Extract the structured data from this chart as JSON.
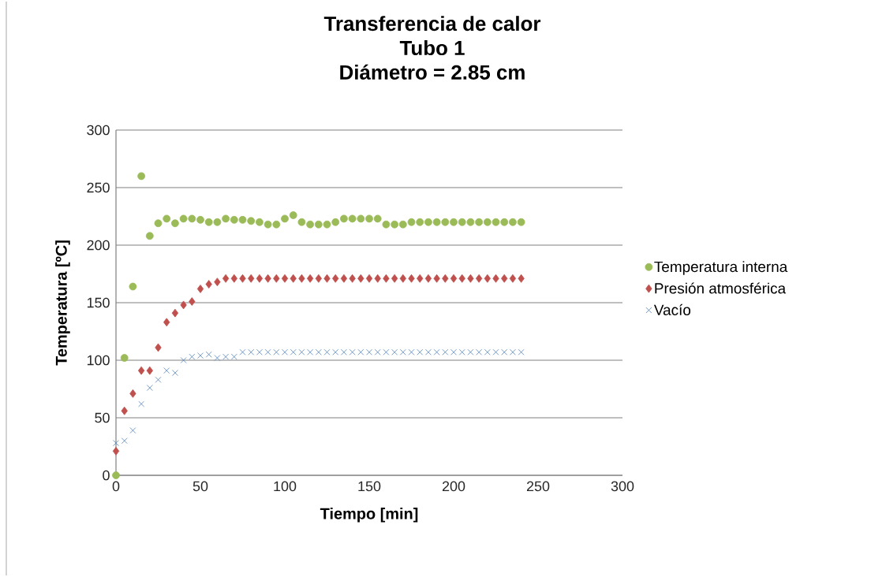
{
  "chart_data": {
    "type": "scatter",
    "title": "Transferencia de calor\nTubo 1\nDiámetro = 2.85 cm",
    "xlabel": "Tiempo [min]",
    "ylabel": "Temperatura [ºC]",
    "x": [
      0,
      5,
      10,
      15,
      20,
      25,
      30,
      35,
      40,
      45,
      50,
      55,
      60,
      65,
      70,
      75,
      80,
      85,
      90,
      95,
      100,
      105,
      110,
      115,
      120,
      125,
      130,
      135,
      140,
      145,
      150,
      155,
      160,
      165,
      170,
      175,
      180,
      185,
      190,
      195,
      200,
      205,
      210,
      215,
      220,
      225,
      230,
      235,
      240
    ],
    "series": [
      {
        "name": "Temperatura interna",
        "color": "#9bbb59",
        "marker": "circle",
        "values": [
          0,
          102,
          164,
          260,
          208,
          219,
          223,
          219,
          223,
          223,
          222,
          220,
          220,
          223,
          222,
          222,
          221,
          220,
          218,
          218,
          223,
          226,
          220,
          218,
          218,
          218,
          220,
          223,
          223,
          223,
          223,
          223,
          218,
          218,
          218,
          220,
          220,
          220,
          220,
          220,
          220,
          220,
          220,
          220,
          220,
          220,
          220,
          220,
          220
        ]
      },
      {
        "name": "Presión atmosférica",
        "color": "#c0504d",
        "marker": "diamond",
        "values": [
          21,
          56,
          71,
          91,
          91,
          111,
          133,
          141,
          148,
          151,
          162,
          166,
          168,
          171,
          171,
          171,
          171,
          171,
          171,
          171,
          171,
          171,
          171,
          171,
          171,
          171,
          171,
          171,
          171,
          171,
          171,
          171,
          171,
          171,
          171,
          171,
          171,
          171,
          171,
          171,
          171,
          171,
          171,
          171,
          171,
          171,
          171,
          171,
          171
        ]
      },
      {
        "name": "Vacío",
        "color": "#4f81bd",
        "marker": "cross",
        "values": [
          28,
          30,
          39,
          62,
          76,
          83,
          91,
          89,
          100,
          103,
          104,
          105,
          102,
          103,
          103,
          107,
          107,
          107,
          107,
          107,
          107,
          107,
          107,
          107,
          107,
          107,
          107,
          107,
          107,
          107,
          107,
          107,
          107,
          107,
          107,
          107,
          107,
          107,
          107,
          107,
          107,
          107,
          107,
          107,
          107,
          107,
          107,
          107,
          107
        ]
      }
    ],
    "xlim": [
      0,
      300
    ],
    "xticks": [
      0,
      50,
      100,
      150,
      200,
      250,
      300
    ],
    "ylim": [
      0,
      300
    ],
    "yticks": [
      0,
      50,
      100,
      150,
      200,
      250,
      300
    ],
    "grid": "y",
    "legend": "right"
  }
}
